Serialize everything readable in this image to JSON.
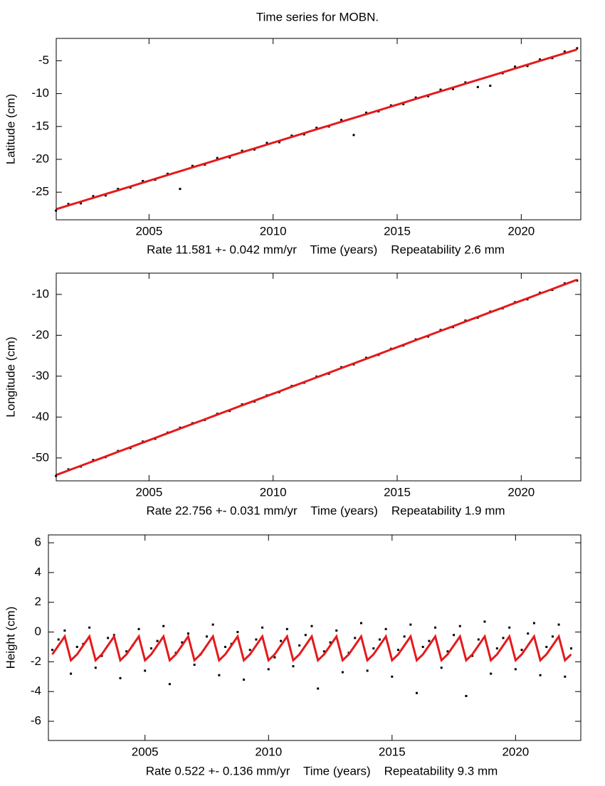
{
  "title": "Time series for MOBN.",
  "chart_data": [
    {
      "type": "line",
      "ylabel": "Latitude (cm)",
      "xlabel": "Rate 11.581 +- 0.042 mm/yr    Time (years)    Repeatability 2.6 mm",
      "xlim": [
        2001.26,
        2022.4
      ],
      "ylim": [
        -29.2,
        -1.6
      ],
      "xticks": [
        2005,
        2010,
        2015,
        2020
      ],
      "yticks": [
        -25,
        -20,
        -15,
        -10,
        -5
      ],
      "x": [
        2001.25,
        2001.75,
        2002.25,
        2002.75,
        2003.25,
        2003.75,
        2004.25,
        2004.75,
        2005.25,
        2005.75,
        2006.25,
        2006.75,
        2007.25,
        2007.75,
        2008.25,
        2008.75,
        2009.25,
        2009.75,
        2010.25,
        2010.75,
        2011.25,
        2011.75,
        2012.25,
        2012.75,
        2013.25,
        2013.75,
        2014.25,
        2014.75,
        2015.25,
        2015.75,
        2016.25,
        2016.75,
        2017.25,
        2017.75,
        2018.25,
        2018.75,
        2019.25,
        2019.75,
        2020.25,
        2020.75,
        2021.25,
        2021.75,
        2022.25
      ],
      "series": [
        {
          "color": "#000000",
          "mode": "points",
          "values": [
            -27.8,
            -26.8,
            -26.7,
            -25.6,
            -25.5,
            -24.5,
            -24.3,
            -23.3,
            -23.1,
            -22.2,
            -24.5,
            -21.0,
            -20.8,
            -19.8,
            -19.7,
            -18.7,
            -18.5,
            -17.5,
            -17.4,
            -16.4,
            -16.2,
            -15.2,
            -15.0,
            -14.0,
            -16.3,
            -12.9,
            -12.7,
            -11.8,
            -11.6,
            -10.6,
            -10.4,
            -9.4,
            -9.3,
            -8.3,
            -9.0,
            -8.8,
            -6.9,
            -5.9,
            -5.8,
            -4.8,
            -4.6,
            -3.6,
            -3.1
          ]
        },
        {
          "color": "#e41a1c",
          "mode": "line",
          "values": [
            -27.6,
            -27.02,
            -26.44,
            -25.86,
            -25.28,
            -24.71,
            -24.13,
            -23.55,
            -22.97,
            -22.39,
            -21.81,
            -21.23,
            -20.65,
            -20.07,
            -19.49,
            -18.92,
            -18.34,
            -17.76,
            -17.18,
            -16.6,
            -16.02,
            -15.44,
            -14.86,
            -14.28,
            -13.7,
            -13.13,
            -12.55,
            -11.97,
            -11.39,
            -10.81,
            -10.23,
            -9.65,
            -9.07,
            -8.49,
            -7.91,
            -7.34,
            -6.76,
            -6.18,
            -5.6,
            -5.02,
            -4.44,
            -3.86,
            -3.28
          ]
        }
      ]
    },
    {
      "type": "line",
      "ylabel": "Longitude (cm)",
      "xlabel": "Rate 22.756 +- 0.031 mm/yr    Time (years)    Repeatability 1.9 mm",
      "xlim": [
        2001.26,
        2022.4
      ],
      "ylim": [
        -55.6,
        -4.8
      ],
      "xticks": [
        2005,
        2010,
        2015,
        2020
      ],
      "yticks": [
        -50,
        -40,
        -30,
        -20,
        -10
      ],
      "x": [
        2001.25,
        2001.75,
        2002.25,
        2002.75,
        2003.25,
        2003.75,
        2004.25,
        2004.75,
        2005.25,
        2005.75,
        2006.25,
        2006.75,
        2007.25,
        2007.75,
        2008.25,
        2008.75,
        2009.25,
        2009.75,
        2010.25,
        2010.75,
        2011.25,
        2011.75,
        2012.25,
        2012.75,
        2013.25,
        2013.75,
        2014.25,
        2014.75,
        2015.25,
        2015.75,
        2016.25,
        2016.75,
        2017.25,
        2017.75,
        2018.25,
        2018.75,
        2019.25,
        2019.75,
        2020.25,
        2020.75,
        2021.25,
        2021.75,
        2022.25
      ],
      "series": [
        {
          "color": "#000000",
          "mode": "points",
          "values": [
            -54.4,
            -52.8,
            -52.1,
            -50.5,
            -49.8,
            -48.3,
            -47.6,
            -46.0,
            -45.3,
            -43.8,
            -42.6,
            -41.5,
            -40.7,
            -39.2,
            -38.5,
            -36.9,
            -36.2,
            -34.7,
            -33.9,
            -32.4,
            -31.6,
            -30.1,
            -29.4,
            -27.8,
            -27.1,
            -25.5,
            -24.8,
            -23.3,
            -22.5,
            -21.0,
            -20.3,
            -18.7,
            -18.0,
            -16.4,
            -15.7,
            -14.2,
            -13.4,
            -11.9,
            -11.2,
            -9.6,
            -8.9,
            -7.3,
            -6.6
          ]
        },
        {
          "color": "#e41a1c",
          "mode": "line",
          "values": [
            -54.2,
            -53.06,
            -51.92,
            -50.79,
            -49.65,
            -48.51,
            -47.37,
            -46.24,
            -45.1,
            -43.96,
            -42.82,
            -41.68,
            -40.55,
            -39.41,
            -38.27,
            -37.13,
            -36.0,
            -34.86,
            -33.72,
            -32.58,
            -31.44,
            -30.31,
            -29.17,
            -28.03,
            -26.89,
            -25.76,
            -24.62,
            -23.48,
            -22.34,
            -21.2,
            -20.07,
            -18.93,
            -17.79,
            -16.65,
            -15.51,
            -14.38,
            -13.24,
            -12.1,
            -10.96,
            -9.82,
            -8.69,
            -7.55,
            -6.41
          ]
        }
      ]
    },
    {
      "type": "line",
      "ylabel": "Height (cm)",
      "xlabel": "Rate 0.522 +- 0.136 mm/yr    Time (years)    Repeatability 9.3 mm",
      "xlim": [
        2001.09,
        2022.64
      ],
      "ylim": [
        -7.29,
        6.53
      ],
      "xticks": [
        2005,
        2010,
        2015,
        2020
      ],
      "yticks": [
        -6,
        -4,
        -2,
        0,
        2,
        4,
        6
      ],
      "x": [
        2001.25,
        2001.5,
        2001.75,
        2002.0,
        2002.25,
        2002.5,
        2002.75,
        2003.0,
        2003.25,
        2003.5,
        2003.75,
        2004.0,
        2004.25,
        2004.5,
        2004.75,
        2005.0,
        2005.25,
        2005.5,
        2005.75,
        2006.0,
        2006.25,
        2006.5,
        2006.75,
        2007.0,
        2007.25,
        2007.5,
        2007.75,
        2008.0,
        2008.25,
        2008.5,
        2008.75,
        2009.0,
        2009.25,
        2009.5,
        2009.75,
        2010.0,
        2010.25,
        2010.5,
        2010.75,
        2011.0,
        2011.25,
        2011.5,
        2011.75,
        2012.0,
        2012.25,
        2012.5,
        2012.75,
        2013.0,
        2013.25,
        2013.5,
        2013.75,
        2014.0,
        2014.25,
        2014.5,
        2014.75,
        2015.0,
        2015.25,
        2015.5,
        2015.75,
        2016.0,
        2016.25,
        2016.5,
        2016.75,
        2017.0,
        2017.25,
        2017.5,
        2017.75,
        2018.0,
        2018.25,
        2018.5,
        2018.75,
        2019.0,
        2019.25,
        2019.5,
        2019.75,
        2020.0,
        2020.25,
        2020.5,
        2020.75,
        2021.0,
        2021.25,
        2021.5,
        2021.75,
        2022.0,
        2022.25
      ],
      "series": [
        {
          "color": "#000000",
          "mode": "points",
          "values": [
            -1.2,
            -0.5,
            0.1,
            -2.8,
            -1.0,
            -0.8,
            0.3,
            -2.4,
            -1.6,
            -0.4,
            -0.2,
            -3.1,
            -1.3,
            -0.9,
            0.2,
            -2.6,
            -1.1,
            -0.6,
            0.4,
            -3.5,
            -1.4,
            -0.7,
            -0.1,
            -2.2,
            -1.5,
            -0.3,
            0.5,
            -2.9,
            -1.0,
            -0.8,
            0.0,
            -3.2,
            -1.2,
            -0.5,
            0.3,
            -2.5,
            -1.7,
            -0.6,
            0.2,
            -2.3,
            -0.9,
            -0.2,
            0.4,
            -3.8,
            -1.3,
            -0.7,
            0.1,
            -2.7,
            -1.4,
            -0.4,
            0.6,
            -2.6,
            -1.1,
            -0.5,
            0.2,
            -3.0,
            -1.2,
            -0.3,
            0.5,
            -4.1,
            -1.0,
            -0.6,
            0.3,
            -2.4,
            -1.3,
            -0.2,
            0.4,
            -4.3,
            -1.6,
            -0.5,
            0.7,
            -2.8,
            -1.1,
            -0.4,
            0.3,
            -2.5,
            -1.2,
            -0.1,
            0.6,
            -2.9,
            -1.0,
            -0.3,
            0.5,
            -3.0,
            -1.1
          ]
        },
        {
          "color": "#e41a1c",
          "mode": "line",
          "values": [
            -1.5,
            -0.9,
            -0.3,
            -1.9,
            -1.5,
            -0.9,
            -0.3,
            -1.9,
            -1.5,
            -0.9,
            -0.3,
            -1.9,
            -1.5,
            -0.9,
            -0.3,
            -1.9,
            -1.5,
            -0.9,
            -0.3,
            -1.9,
            -1.5,
            -0.9,
            -0.3,
            -1.9,
            -1.5,
            -0.9,
            -0.3,
            -1.9,
            -1.5,
            -0.9,
            -0.3,
            -1.9,
            -1.5,
            -0.9,
            -0.3,
            -1.9,
            -1.5,
            -0.9,
            -0.3,
            -1.9,
            -1.5,
            -0.9,
            -0.3,
            -1.9,
            -1.5,
            -0.9,
            -0.3,
            -1.9,
            -1.5,
            -0.9,
            -0.3,
            -1.9,
            -1.5,
            -0.9,
            -0.3,
            -1.9,
            -1.5,
            -0.9,
            -0.3,
            -1.9,
            -1.5,
            -0.9,
            -0.3,
            -1.9,
            -1.5,
            -0.9,
            -0.3,
            -1.9,
            -1.5,
            -0.9,
            -0.3,
            -1.9,
            -1.5,
            -0.9,
            -0.3,
            -1.9,
            -1.5,
            -0.9,
            -0.3,
            -1.9,
            -1.5,
            -0.9,
            -0.3,
            -1.9,
            -1.5
          ]
        }
      ]
    }
  ]
}
